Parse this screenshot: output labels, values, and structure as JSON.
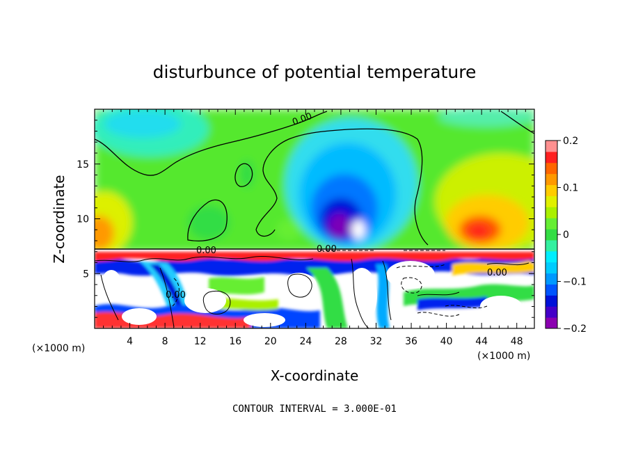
{
  "chart_data": {
    "type": "heatmap",
    "title": "disturbunce of potential temperature",
    "xlabel": "X-coordinate",
    "ylabel": "Z-coordinate",
    "x_unit": "(×1000 m)",
    "x_ticks": [
      4,
      8,
      12,
      16,
      20,
      24,
      28,
      32,
      36,
      40,
      44,
      48
    ],
    "y_ticks": [
      5,
      10,
      15
    ],
    "xlim": [
      0,
      50
    ],
    "ylim": [
      0,
      20
    ],
    "colorbar": {
      "range": [
        -0.2,
        0.2
      ],
      "tick_labels": [
        "0.2",
        "0.1",
        "0",
        "−0.1",
        "−0.2"
      ],
      "tick_values": [
        0.2,
        0.1,
        0,
        -0.1,
        -0.2
      ],
      "colors": [
        "#8b00b0",
        "#4400c8",
        "#0011d8",
        "#0055ff",
        "#0099ff",
        "#00ccff",
        "#00eeff",
        "#33f0a0",
        "#33dd44",
        "#66ee33",
        "#aaf000",
        "#e0f000",
        "#ffcc00",
        "#ff9900",
        "#ff6600",
        "#ff2020",
        "#ff9090"
      ]
    },
    "contour_labels": [
      "0.00",
      "0.00",
      "0.00",
      "0.00",
      "0.00"
    ],
    "footer": "CONTOUR INTERVAL = 3.000E-01"
  }
}
